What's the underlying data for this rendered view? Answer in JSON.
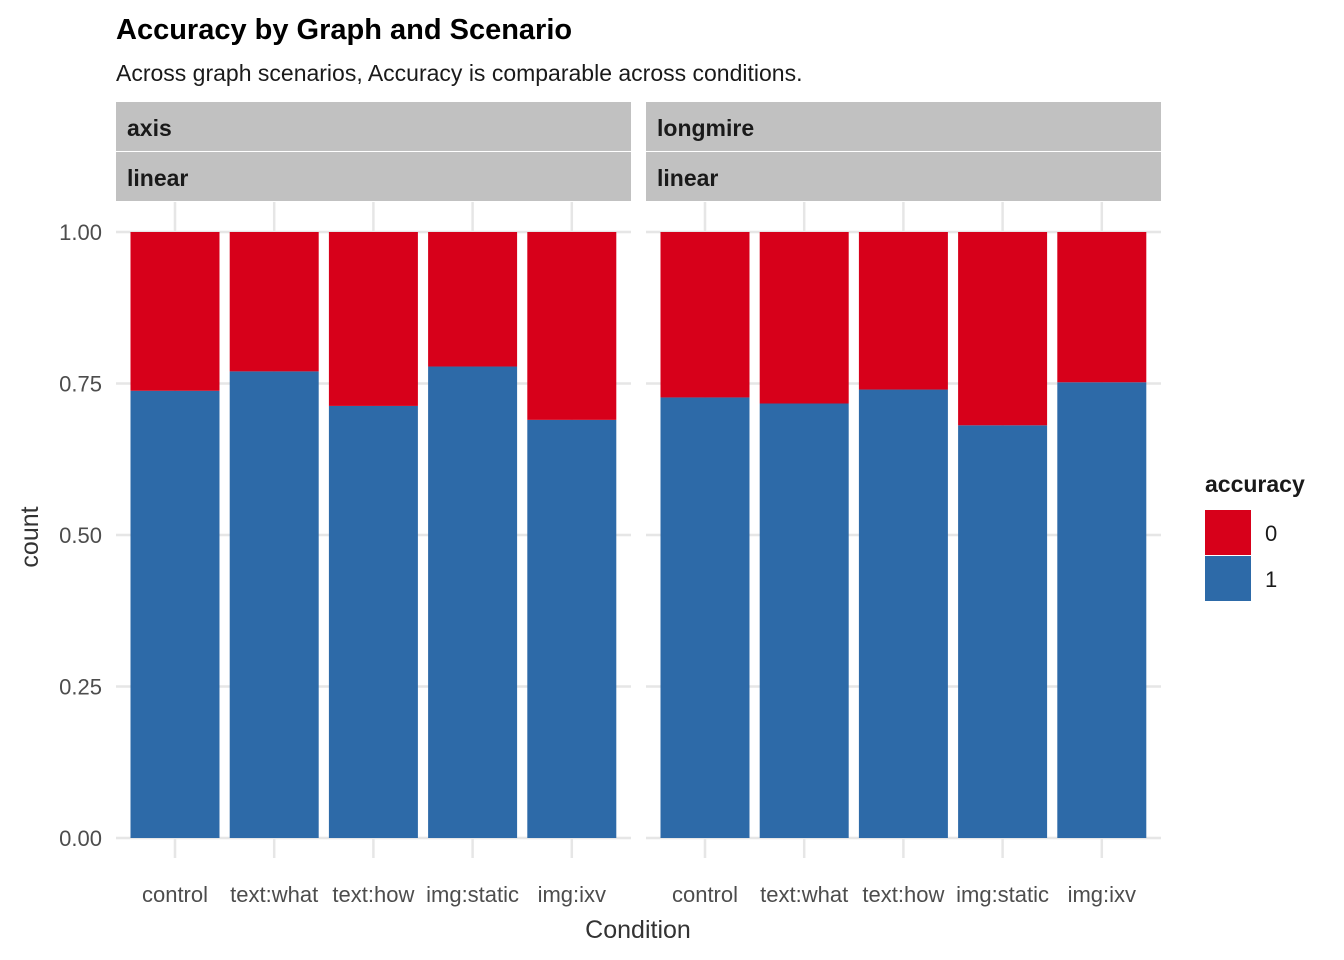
{
  "chart_data": {
    "type": "bar",
    "stacked": true,
    "position": "fill",
    "title": "Accuracy by Graph and Scenario",
    "subtitle": "Across graph scenarios, Accuracy is comparable across conditions.",
    "xlabel": "Condition",
    "ylabel": "count",
    "ylim": [
      0,
      1
    ],
    "yticks": [
      "0.00",
      "0.25",
      "0.50",
      "0.75",
      "1.00"
    ],
    "categories": [
      "control",
      "text:what",
      "text:how",
      "img:static",
      "img:ixv"
    ],
    "grid": true,
    "legend": {
      "title": "accuracy",
      "position": "right",
      "entries": [
        {
          "label": "0",
          "color": "#d7001a"
        },
        {
          "label": "1",
          "color": "#2d6aa8"
        }
      ]
    },
    "facets": [
      {
        "strip": [
          "axis",
          "linear"
        ],
        "series": [
          {
            "name": "1",
            "values": [
              0.738,
              0.77,
              0.713,
              0.778,
              0.69
            ]
          },
          {
            "name": "0",
            "values": [
              0.262,
              0.23,
              0.287,
              0.222,
              0.31
            ]
          }
        ]
      },
      {
        "strip": [
          "longmire",
          "linear"
        ],
        "series": [
          {
            "name": "1",
            "values": [
              0.727,
              0.717,
              0.74,
              0.681,
              0.752
            ]
          },
          {
            "name": "0",
            "values": [
              0.273,
              0.283,
              0.26,
              0.319,
              0.248
            ]
          }
        ]
      }
    ]
  }
}
